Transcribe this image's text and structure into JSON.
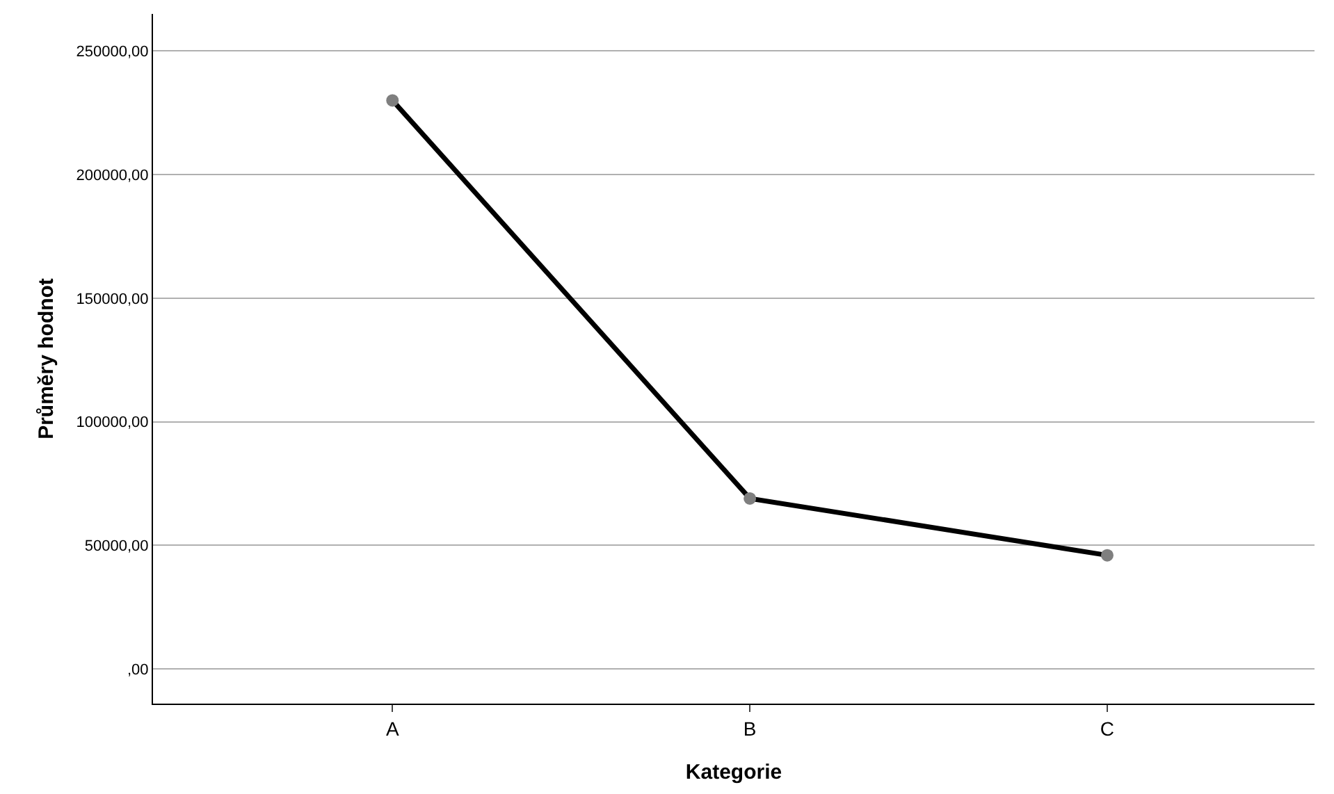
{
  "chart_data": {
    "type": "line",
    "xlabel": "Kategorie",
    "ylabel": "Průměry hodnot",
    "categories": [
      "A",
      "B",
      "C"
    ],
    "series": [
      {
        "color": "#000000",
        "values": [
          230000,
          69000,
          46000
        ]
      }
    ],
    "ylim": [
      -14000,
      265000
    ],
    "yticks": [
      {
        "value": 0,
        "label": ",00"
      },
      {
        "value": 50000,
        "label": "50000,00"
      },
      {
        "value": 100000,
        "label": "100000,00"
      },
      {
        "value": 150000,
        "label": "150000,00"
      },
      {
        "value": 200000,
        "label": "200000,00"
      },
      {
        "value": 250000,
        "label": "250000,00"
      }
    ],
    "grid": "y",
    "marker": "circle",
    "line_style": "solid"
  }
}
